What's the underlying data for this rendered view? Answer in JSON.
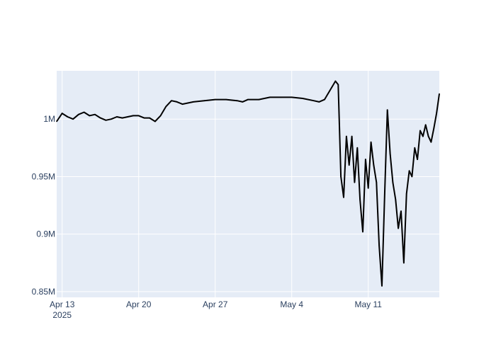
{
  "chart_data": {
    "type": "line",
    "title": "",
    "xlabel": "",
    "ylabel": "",
    "x_range": [
      "2025-04-12T12:00",
      "2025-05-17T12:00"
    ],
    "y_range": [
      845000,
      1042000
    ],
    "grid": true,
    "legend": "none",
    "x_ticks": [
      {
        "date": "2025-04-13",
        "label": "Apr 13",
        "sublabel": "2025"
      },
      {
        "date": "2025-04-20",
        "label": "Apr 20",
        "sublabel": ""
      },
      {
        "date": "2025-04-27",
        "label": "Apr 27",
        "sublabel": ""
      },
      {
        "date": "2025-05-04",
        "label": "May 4",
        "sublabel": ""
      },
      {
        "date": "2025-05-11",
        "label": "May 11",
        "sublabel": ""
      }
    ],
    "y_ticks": [
      {
        "value": 850000,
        "label": "0.85M"
      },
      {
        "value": 900000,
        "label": "0.9M"
      },
      {
        "value": 950000,
        "label": "0.95M"
      },
      {
        "value": 1000000,
        "label": "1M"
      }
    ],
    "series": [
      {
        "color": "#000000",
        "x": [
          "2025-04-12T12:00",
          "2025-04-13T00:00",
          "2025-04-13T12:00",
          "2025-04-14T00:00",
          "2025-04-14T12:00",
          "2025-04-15T00:00",
          "2025-04-15T12:00",
          "2025-04-16T00:00",
          "2025-04-16T12:00",
          "2025-04-17T00:00",
          "2025-04-17T12:00",
          "2025-04-18T00:00",
          "2025-04-18T12:00",
          "2025-04-19T00:00",
          "2025-04-19T12:00",
          "2025-04-20T00:00",
          "2025-04-20T12:00",
          "2025-04-21T00:00",
          "2025-04-21T12:00",
          "2025-04-22T00:00",
          "2025-04-22T12:00",
          "2025-04-23T00:00",
          "2025-04-23T12:00",
          "2025-04-24T00:00",
          "2025-04-24T12:00",
          "2025-04-25T00:00",
          "2025-04-26T00:00",
          "2025-04-27T00:00",
          "2025-04-28T00:00",
          "2025-04-29T00:00",
          "2025-04-29T12:00",
          "2025-04-30T00:00",
          "2025-05-01T00:00",
          "2025-05-02T00:00",
          "2025-05-03T00:00",
          "2025-05-04T00:00",
          "2025-05-05T00:00",
          "2025-05-06T00:00",
          "2025-05-06T12:00",
          "2025-05-07T00:00",
          "2025-05-07T12:00",
          "2025-05-08T00:00",
          "2025-05-08T06:00",
          "2025-05-08T12:00",
          "2025-05-08T18:00",
          "2025-05-09T00:00",
          "2025-05-09T06:00",
          "2025-05-09T12:00",
          "2025-05-09T18:00",
          "2025-05-10T00:00",
          "2025-05-10T06:00",
          "2025-05-10T12:00",
          "2025-05-10T18:00",
          "2025-05-11T00:00",
          "2025-05-11T06:00",
          "2025-05-11T12:00",
          "2025-05-11T18:00",
          "2025-05-12T00:00",
          "2025-05-12T06:00",
          "2025-05-12T12:00",
          "2025-05-12T18:00",
          "2025-05-13T00:00",
          "2025-05-13T06:00",
          "2025-05-13T12:00",
          "2025-05-13T18:00",
          "2025-05-14T00:00",
          "2025-05-14T06:00",
          "2025-05-14T12:00",
          "2025-05-14T18:00",
          "2025-05-15T00:00",
          "2025-05-15T06:00",
          "2025-05-15T12:00",
          "2025-05-15T18:00",
          "2025-05-16T00:00",
          "2025-05-16T06:00",
          "2025-05-16T12:00",
          "2025-05-16T18:00",
          "2025-05-17T00:00",
          "2025-05-17T06:00",
          "2025-05-17T12:00"
        ],
        "y": [
          998000,
          1005000,
          1002000,
          1000000,
          1004000,
          1006000,
          1003000,
          1004000,
          1001000,
          999000,
          1000000,
          1002000,
          1001000,
          1002000,
          1003000,
          1003000,
          1001000,
          1001000,
          998000,
          1003000,
          1011000,
          1016000,
          1015000,
          1013000,
          1014000,
          1015000,
          1016000,
          1017000,
          1017000,
          1016000,
          1015000,
          1017000,
          1017000,
          1019000,
          1019000,
          1019000,
          1018000,
          1016000,
          1015000,
          1017000,
          1025000,
          1033000,
          1030000,
          950000,
          932000,
          985000,
          960000,
          985000,
          945000,
          975000,
          930000,
          902000,
          965000,
          940000,
          980000,
          960000,
          945000,
          890000,
          855000,
          935000,
          1008000,
          970000,
          945000,
          930000,
          905000,
          920000,
          875000,
          935000,
          955000,
          950000,
          975000,
          965000,
          990000,
          985000,
          995000,
          985000,
          980000,
          992000,
          1005000,
          1022000
        ]
      }
    ]
  }
}
